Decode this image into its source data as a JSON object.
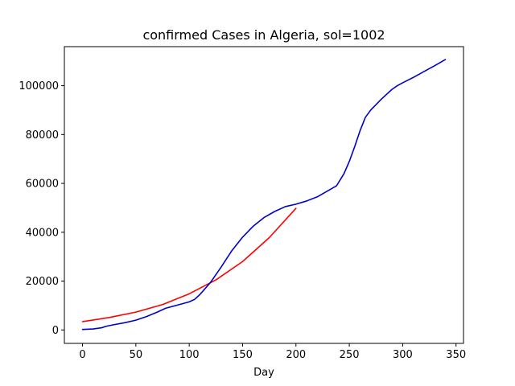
{
  "chart_data": {
    "type": "line",
    "title": "confirmed Cases in Algeria, sol=1002",
    "xlabel": "Day",
    "ylabel": "",
    "xlim": [
      -17,
      357
    ],
    "ylim": [
      -5500,
      116000
    ],
    "xticks": [
      0,
      50,
      100,
      150,
      200,
      250,
      300,
      350
    ],
    "yticks": [
      0,
      20000,
      40000,
      60000,
      80000,
      100000
    ],
    "grid": false,
    "legend": "none",
    "series": [
      {
        "color": "#ff0000",
        "x": [
          0,
          25,
          50,
          75,
          100,
          125,
          150,
          175,
          200
        ],
        "y": [
          3400,
          5100,
          7300,
          10400,
          14800,
          20500,
          28000,
          37800,
          49800
        ]
      },
      {
        "color": "#0000cc",
        "x": [
          0,
          10,
          18,
          22,
          30,
          40,
          50,
          60,
          70,
          78,
          90,
          100,
          105,
          110,
          120,
          130,
          140,
          150,
          160,
          170,
          180,
          190,
          200,
          210,
          220,
          230,
          238,
          245,
          250,
          255,
          260,
          265,
          270,
          280,
          290,
          295,
          300,
          310,
          320,
          330,
          340
        ],
        "y": [
          200,
          400,
          900,
          1500,
          2200,
          3000,
          4000,
          5500,
          7300,
          8900,
          10300,
          11500,
          12500,
          14500,
          19500,
          25800,
          32500,
          38000,
          42500,
          46000,
          48500,
          50500,
          51500,
          52800,
          54500,
          57000,
          59000,
          64000,
          69000,
          75000,
          81500,
          87000,
          90000,
          94500,
          98500,
          100000,
          101200,
          103400,
          105800,
          108200,
          110700
        ]
      }
    ]
  }
}
